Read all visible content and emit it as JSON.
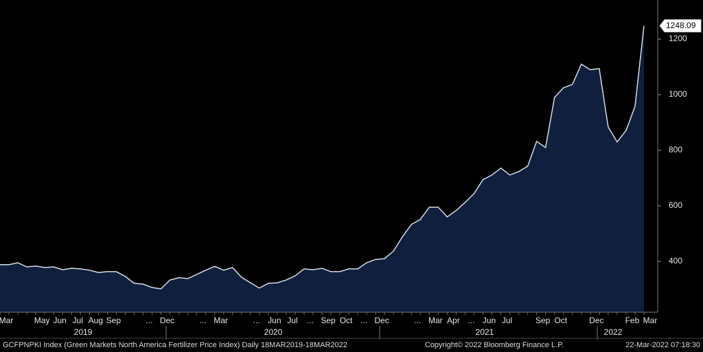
{
  "chart_data": {
    "type": "area",
    "categories": [
      "Mar",
      null,
      null,
      null,
      "May",
      null,
      "Jun",
      null,
      "Jul",
      null,
      "Aug",
      null,
      "Sep",
      null,
      null,
      null,
      "...",
      null,
      "Dec",
      null,
      null,
      null,
      "...",
      null,
      "Mar",
      null,
      null,
      null,
      "...",
      null,
      "Jun",
      null,
      "Jul",
      null,
      "...",
      null,
      "Sep",
      null,
      "Oct",
      null,
      "...",
      null,
      "Dec",
      null,
      null,
      null,
      "...",
      null,
      "Mar",
      null,
      "Apr",
      null,
      "...",
      null,
      "Jun",
      null,
      "Jul",
      null,
      null,
      null,
      "Sep",
      null,
      "Oct",
      null,
      null,
      null,
      "Dec",
      null,
      null,
      null,
      "Feb",
      null,
      "Mar"
    ],
    "values": [
      388,
      388,
      395,
      380,
      383,
      378,
      380,
      370,
      375,
      373,
      368,
      360,
      363,
      363,
      346,
      321,
      318,
      306,
      301,
      333,
      341,
      338,
      353,
      368,
      382,
      368,
      378,
      343,
      323,
      304,
      321,
      323,
      333,
      348,
      373,
      370,
      375,
      363,
      363,
      373,
      373,
      395,
      407,
      410,
      437,
      489,
      533,
      551,
      595,
      595,
      560,
      583,
      612,
      644,
      694,
      711,
      736,
      711,
      723,
      743,
      832,
      810,
      990,
      1025,
      1037,
      1110,
      1090,
      1094,
      884,
      830,
      871,
      958,
      1248.09
    ],
    "years": [
      "2019",
      "2020",
      "2021",
      "2022"
    ],
    "color": "#0f1f3d",
    "line_color": "#d9dde6",
    "ylim": [
      217,
      1341
    ],
    "yticks": [
      400,
      600,
      800,
      1000,
      1200
    ],
    "footer_left": "GCFPNPKI Index (Green Markets North America Fertilizer Price Index)  Daily 18MAR2019-18MAR2022",
    "footer_center": "Copyright© 2022 Bloomberg Finance L.P.",
    "footer_right": "22-Mar-2022 07:18:30"
  }
}
